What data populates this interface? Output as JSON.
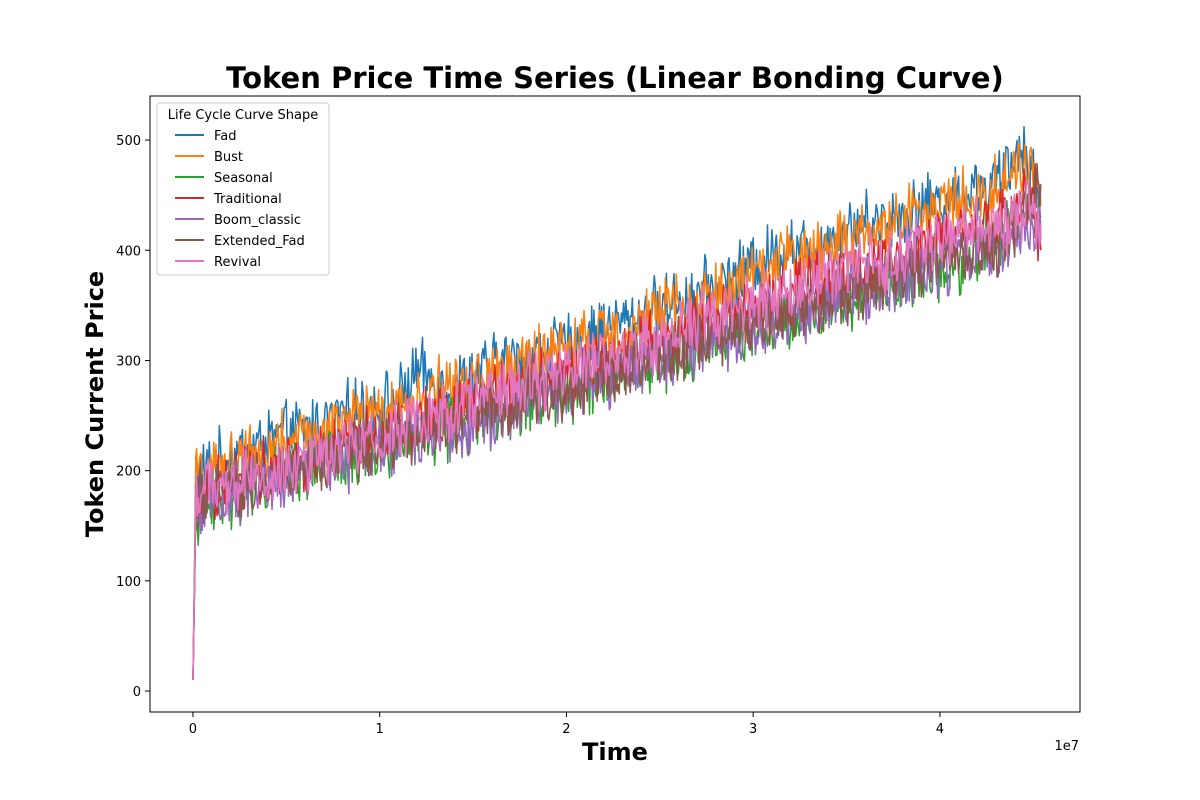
{
  "chart_data": {
    "type": "line",
    "title": "Token Price Time Series (Linear Bonding Curve)",
    "xlabel": "Time",
    "ylabel": "Token Current Price",
    "x_offset_label": "1e7",
    "xlim": [
      -2300000,
      47500000
    ],
    "ylim": [
      -19,
      540
    ],
    "x_ticks": [
      0,
      10000000,
      20000000,
      30000000,
      40000000
    ],
    "x_tick_labels": [
      "0",
      "1",
      "2",
      "3",
      "4"
    ],
    "y_ticks": [
      0,
      100,
      200,
      300,
      400,
      500
    ],
    "y_tick_labels": [
      "0",
      "100",
      "200",
      "300",
      "400",
      "500"
    ],
    "grid": false,
    "legend": {
      "title": "Life Cycle Curve Shape",
      "placement": "top-left"
    },
    "series": [
      {
        "name": "Fad",
        "color": "#1f77b4",
        "x": [
          0,
          150000,
          500000,
          1000000,
          2000000,
          3000000,
          4000000,
          5000000,
          6000000,
          7000000,
          8000000,
          9000000,
          10000000,
          11000000,
          12000000,
          13000000,
          14000000,
          15000000,
          16000000,
          17000000,
          18000000,
          19000000,
          20000000,
          21000000,
          22000000,
          23000000,
          24000000,
          25000000,
          26000000,
          27000000,
          28000000,
          29000000,
          30000000,
          31000000,
          32000000,
          33000000,
          34000000,
          35000000,
          36000000,
          37000000,
          38000000,
          39000000,
          40000000,
          41000000,
          42000000,
          43000000,
          44000000,
          44500000,
          45000000,
          45400000
        ],
        "y": [
          10,
          195,
          198,
          205,
          212,
          220,
          226,
          232,
          238,
          243,
          250,
          255,
          260,
          265,
          290,
          280,
          278,
          285,
          295,
          300,
          305,
          310,
          312,
          318,
          330,
          335,
          340,
          348,
          355,
          360,
          368,
          375,
          390,
          395,
          405,
          400,
          410,
          418,
          425,
          428,
          432,
          440,
          445,
          450,
          455,
          460,
          480,
          500,
          470,
          430
        ]
      },
      {
        "name": "Bust",
        "color": "#ff7f0e",
        "x": [
          0,
          150000,
          500000,
          1000000,
          2000000,
          3000000,
          4000000,
          5000000,
          6000000,
          7000000,
          8000000,
          9000000,
          10000000,
          11000000,
          12000000,
          13000000,
          14000000,
          15000000,
          16000000,
          17000000,
          18000000,
          19000000,
          20000000,
          21000000,
          22000000,
          23000000,
          24000000,
          25000000,
          26000000,
          27000000,
          28000000,
          29000000,
          30000000,
          31000000,
          32000000,
          33000000,
          34000000,
          35000000,
          36000000,
          37000000,
          38000000,
          39000000,
          40000000,
          41000000,
          42000000,
          43000000,
          44000000,
          44500000,
          45000000,
          45400000
        ],
        "y": [
          10,
          200,
          190,
          200,
          208,
          215,
          220,
          226,
          230,
          236,
          242,
          248,
          252,
          258,
          265,
          275,
          272,
          280,
          288,
          292,
          298,
          305,
          310,
          315,
          322,
          330,
          335,
          340,
          350,
          352,
          360,
          368,
          375,
          385,
          395,
          398,
          405,
          410,
          415,
          420,
          430,
          440,
          438,
          445,
          450,
          455,
          470,
          485,
          460,
          440
        ]
      },
      {
        "name": "Seasonal",
        "color": "#2ca02c",
        "x": [
          0,
          150000,
          500000,
          1000000,
          2000000,
          3000000,
          4000000,
          5000000,
          6000000,
          7000000,
          8000000,
          9000000,
          10000000,
          11000000,
          12000000,
          13000000,
          14000000,
          15000000,
          16000000,
          17000000,
          18000000,
          19000000,
          20000000,
          21000000,
          22000000,
          23000000,
          24000000,
          25000000,
          26000000,
          27000000,
          28000000,
          29000000,
          30000000,
          31000000,
          32000000,
          33000000,
          34000000,
          35000000,
          36000000,
          37000000,
          38000000,
          39000000,
          40000000,
          41000000,
          42000000,
          43000000,
          44000000,
          44500000,
          45000000,
          45400000
        ],
        "y": [
          10,
          160,
          165,
          170,
          178,
          185,
          190,
          196,
          202,
          205,
          210,
          215,
          220,
          225,
          230,
          236,
          240,
          246,
          252,
          255,
          262,
          268,
          272,
          278,
          285,
          290,
          296,
          300,
          305,
          310,
          318,
          322,
          330,
          335,
          340,
          345,
          352,
          358,
          362,
          368,
          372,
          380,
          385,
          390,
          400,
          410,
          425,
          440,
          430,
          420
        ]
      },
      {
        "name": "Traditional",
        "color": "#d62728",
        "x": [
          0,
          150000,
          500000,
          1000000,
          2000000,
          3000000,
          4000000,
          5000000,
          6000000,
          7000000,
          8000000,
          9000000,
          10000000,
          11000000,
          12000000,
          13000000,
          14000000,
          15000000,
          16000000,
          17000000,
          18000000,
          19000000,
          20000000,
          21000000,
          22000000,
          23000000,
          24000000,
          25000000,
          26000000,
          27000000,
          28000000,
          29000000,
          30000000,
          31000000,
          32000000,
          33000000,
          34000000,
          35000000,
          36000000,
          37000000,
          38000000,
          39000000,
          40000000,
          41000000,
          42000000,
          43000000,
          44000000,
          44500000,
          45000000,
          45400000
        ],
        "y": [
          10,
          175,
          178,
          182,
          190,
          196,
          202,
          208,
          212,
          218,
          224,
          228,
          234,
          240,
          245,
          250,
          255,
          262,
          268,
          272,
          278,
          284,
          288,
          294,
          300,
          305,
          312,
          318,
          324,
          330,
          335,
          342,
          348,
          354,
          360,
          366,
          372,
          378,
          384,
          390,
          395,
          402,
          408,
          415,
          420,
          428,
          435,
          450,
          440,
          400
        ]
      },
      {
        "name": "Boom_classic",
        "color": "#9467bd",
        "x": [
          0,
          150000,
          500000,
          1000000,
          2000000,
          3000000,
          4000000,
          5000000,
          6000000,
          7000000,
          8000000,
          9000000,
          10000000,
          11000000,
          12000000,
          13000000,
          14000000,
          15000000,
          16000000,
          17000000,
          18000000,
          19000000,
          20000000,
          21000000,
          22000000,
          23000000,
          24000000,
          25000000,
          26000000,
          27000000,
          28000000,
          29000000,
          30000000,
          31000000,
          32000000,
          33000000,
          34000000,
          35000000,
          36000000,
          37000000,
          38000000,
          39000000,
          40000000,
          41000000,
          42000000,
          43000000,
          44000000,
          44500000,
          45000000,
          45400000
        ],
        "y": [
          10,
          165,
          168,
          172,
          178,
          184,
          190,
          195,
          200,
          205,
          210,
          214,
          220,
          225,
          230,
          234,
          240,
          245,
          250,
          256,
          262,
          266,
          272,
          278,
          282,
          288,
          294,
          300,
          305,
          310,
          316,
          322,
          328,
          334,
          340,
          345,
          350,
          356,
          362,
          368,
          375,
          380,
          385,
          390,
          398,
          405,
          412,
          420,
          415,
          410
        ]
      },
      {
        "name": "Extended_Fad",
        "color": "#8c564b",
        "x": [
          0,
          150000,
          500000,
          1000000,
          2000000,
          3000000,
          4000000,
          5000000,
          6000000,
          7000000,
          8000000,
          9000000,
          10000000,
          11000000,
          12000000,
          13000000,
          14000000,
          15000000,
          16000000,
          17000000,
          18000000,
          19000000,
          20000000,
          21000000,
          22000000,
          23000000,
          24000000,
          25000000,
          26000000,
          27000000,
          28000000,
          29000000,
          30000000,
          31000000,
          32000000,
          33000000,
          34000000,
          35000000,
          36000000,
          37000000,
          38000000,
          39000000,
          40000000,
          41000000,
          42000000,
          43000000,
          44000000,
          44500000,
          45000000,
          45400000
        ],
        "y": [
          10,
          170,
          172,
          176,
          184,
          190,
          195,
          200,
          205,
          210,
          215,
          220,
          225,
          230,
          235,
          240,
          244,
          250,
          256,
          260,
          266,
          272,
          276,
          282,
          288,
          294,
          300,
          305,
          310,
          315,
          322,
          328,
          334,
          340,
          345,
          350,
          356,
          362,
          368,
          372,
          378,
          384,
          390,
          395,
          400,
          405,
          420,
          440,
          450,
          460
        ]
      },
      {
        "name": "Revival",
        "color": "#e377c2",
        "x": [
          0,
          150000,
          500000,
          1000000,
          2000000,
          3000000,
          4000000,
          5000000,
          6000000,
          7000000,
          8000000,
          9000000,
          10000000,
          11000000,
          12000000,
          13000000,
          14000000,
          15000000,
          16000000,
          17000000,
          18000000,
          19000000,
          20000000,
          21000000,
          22000000,
          23000000,
          24000000,
          25000000,
          26000000,
          27000000,
          28000000,
          29000000,
          30000000,
          31000000,
          32000000,
          33000000,
          34000000,
          35000000,
          36000000,
          37000000,
          38000000,
          39000000,
          40000000,
          41000000,
          42000000,
          43000000,
          44000000,
          44500000,
          45000000,
          45400000
        ],
        "y": [
          10,
          180,
          175,
          180,
          186,
          192,
          198,
          204,
          208,
          214,
          220,
          226,
          232,
          238,
          244,
          248,
          254,
          260,
          266,
          272,
          278,
          284,
          290,
          296,
          302,
          308,
          314,
          320,
          328,
          334,
          340,
          346,
          352,
          358,
          364,
          370,
          375,
          380,
          386,
          392,
          398,
          404,
          410,
          416,
          420,
          425,
          430,
          435,
          430,
          425
        ]
      }
    ]
  }
}
